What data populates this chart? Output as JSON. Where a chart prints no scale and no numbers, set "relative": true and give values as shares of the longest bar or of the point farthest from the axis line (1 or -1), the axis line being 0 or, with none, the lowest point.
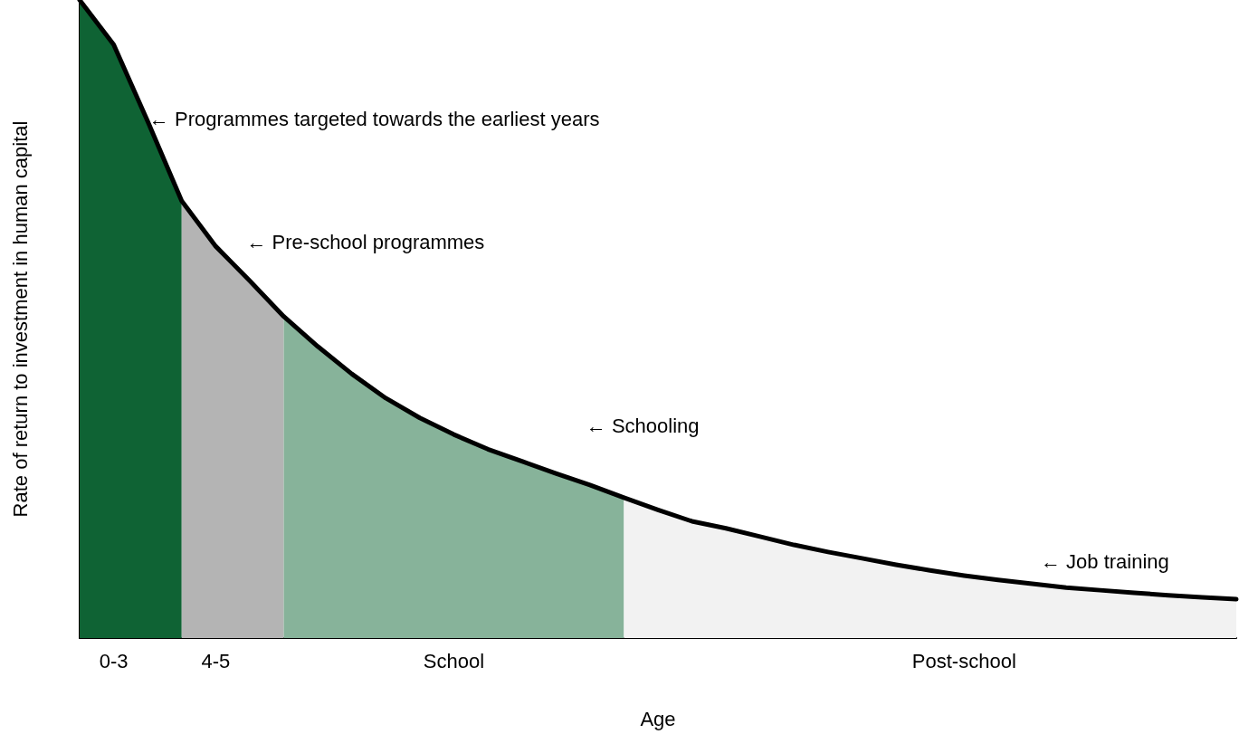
{
  "chart_data": {
    "type": "area",
    "relative": true,
    "xlabel": "Age",
    "ylabel": "Rate of return to investment in human capital",
    "categories": [
      null,
      "0-3",
      null,
      null,
      "4-5",
      null,
      null,
      null,
      null,
      null,
      null,
      "School",
      null,
      null,
      null,
      null,
      null,
      null,
      null,
      null,
      null,
      null,
      null,
      null,
      null,
      null,
      "Post-school",
      null,
      null,
      null,
      null,
      null,
      null,
      null,
      null
    ],
    "tick_labels": "x",
    "grid": false,
    "marker": "none",
    "series": [
      {
        "color": "#0f6334",
        "values": [
          1,
          0.93,
          0.81,
          0.685,
          null,
          null,
          null,
          null,
          null,
          null,
          null,
          null,
          null,
          null,
          null,
          null,
          null,
          null,
          null,
          null,
          null,
          null,
          null,
          null,
          null,
          null,
          null,
          null,
          null,
          null,
          null,
          null,
          null,
          null,
          null
        ]
      },
      {
        "color": "#b4b4b4",
        "values": [
          null,
          null,
          null,
          0.685,
          0.614,
          0.56,
          0.504,
          null,
          null,
          null,
          null,
          null,
          null,
          null,
          null,
          null,
          null,
          null,
          null,
          null,
          null,
          null,
          null,
          null,
          null,
          null,
          null,
          null,
          null,
          null,
          null,
          null,
          null,
          null,
          null
        ]
      },
      {
        "color": "#87b39a",
        "values": [
          null,
          null,
          null,
          null,
          null,
          null,
          0.504,
          0.457,
          0.414,
          0.376,
          0.345,
          0.319,
          0.296,
          0.277,
          0.258,
          0.24,
          0.22,
          null,
          null,
          null,
          null,
          null,
          null,
          null,
          null,
          null,
          null,
          null,
          null,
          null,
          null,
          null,
          null,
          null,
          null
        ]
      },
      {
        "color": "#f2f2f2",
        "values": [
          null,
          null,
          null,
          null,
          null,
          null,
          null,
          null,
          null,
          null,
          null,
          null,
          null,
          null,
          null,
          null,
          0.22,
          0.201,
          0.183,
          0.172,
          0.159,
          0.146,
          0.135,
          0.125,
          0.115,
          0.106,
          0.098,
          0.091,
          0.085,
          0.079,
          0.075,
          0.071,
          0.067,
          0.064,
          0.061
        ]
      },
      {
        "type": "line",
        "color": "#000000",
        "line_style": "solid",
        "values": [
          1,
          0.93,
          0.81,
          0.685,
          0.614,
          0.56,
          0.504,
          0.457,
          0.414,
          0.376,
          0.345,
          0.319,
          0.296,
          0.277,
          0.258,
          0.24,
          0.22,
          0.201,
          0.183,
          0.172,
          0.159,
          0.146,
          0.135,
          0.125,
          0.115,
          0.106,
          0.098,
          0.091,
          0.085,
          0.079,
          0.075,
          0.071,
          0.067,
          0.064,
          0.061
        ]
      }
    ],
    "annotations": [
      "← Programmes targeted towards the earliest years",
      "← Pre-school programmes",
      "← Schooling",
      "← Job training"
    ]
  }
}
